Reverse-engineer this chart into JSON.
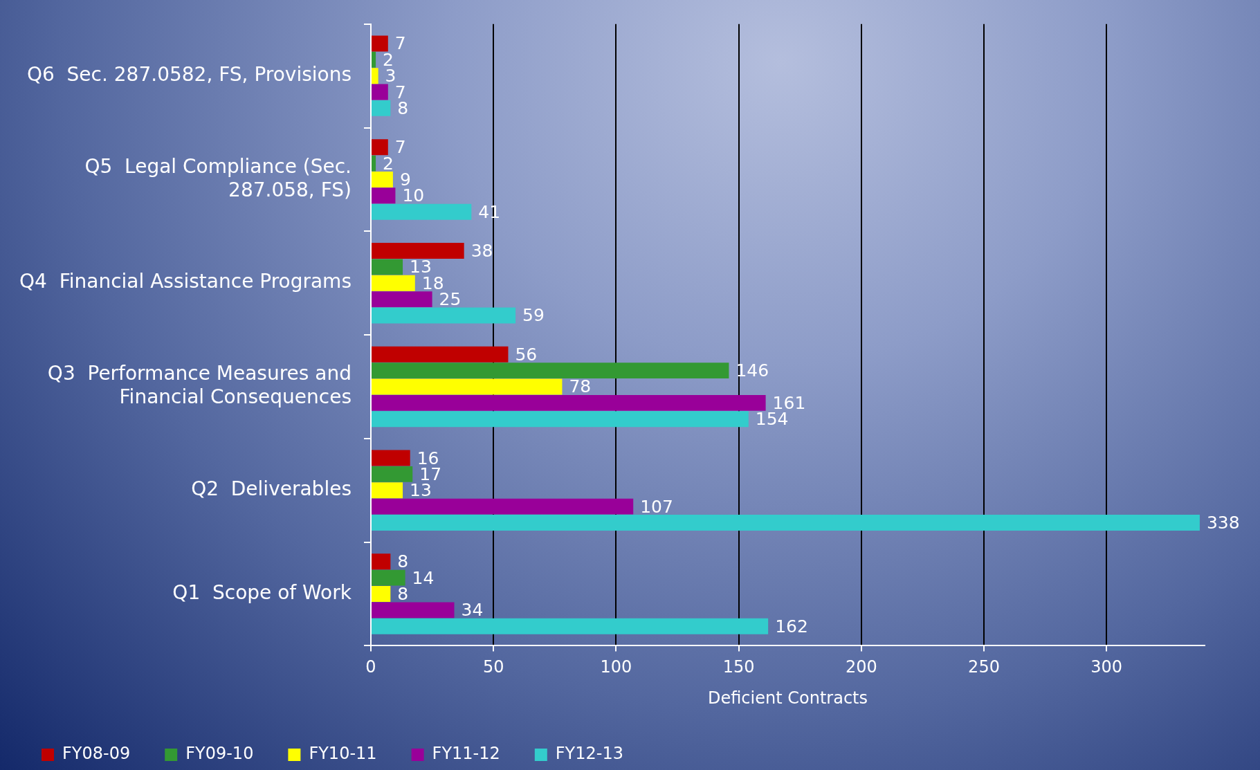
{
  "chart_data": {
    "type": "bar",
    "orientation": "horizontal",
    "xlabel": "Deficient Contracts",
    "categories": [
      "Q6  Sec. 287.0582, FS, Provisions",
      "Q5  Legal Compliance (Sec. 287.058, FS)",
      "Q4  Financial Assistance Programs",
      "Q3  Performance Measures and Financial Consequences",
      "Q2  Deliverables",
      "Q1  Scope of Work"
    ],
    "series": [
      {
        "name": "FY08-09",
        "color": "#c00000",
        "values": [
          7,
          7,
          38,
          56,
          16,
          8
        ]
      },
      {
        "name": "FY09-10",
        "color": "#339933",
        "values": [
          2,
          2,
          13,
          146,
          17,
          14
        ]
      },
      {
        "name": "FY10-11",
        "color": "#ffff00",
        "values": [
          3,
          9,
          18,
          78,
          13,
          8
        ]
      },
      {
        "name": "FY11-12",
        "color": "#990099",
        "values": [
          7,
          10,
          25,
          161,
          107,
          34
        ]
      },
      {
        "name": "FY12-13",
        "color": "#33cccc",
        "values": [
          8,
          41,
          59,
          154,
          338,
          162
        ]
      }
    ],
    "xlim": [
      0,
      340
    ],
    "xticks": [
      0,
      50,
      100,
      150,
      200,
      250,
      300
    ],
    "grid": "x",
    "legend": "bottom left",
    "data_labels": true
  }
}
